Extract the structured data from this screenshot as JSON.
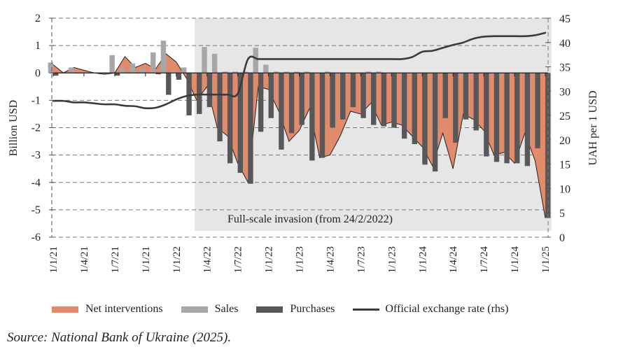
{
  "chart_data": {
    "type": "bar",
    "title": "",
    "ylabel": "Billion USD",
    "ylabel_right": "UAH per 1 USD",
    "ylim": [
      -6,
      2
    ],
    "ylim_right": [
      0,
      45
    ],
    "yticks": [
      "2",
      "1",
      "0",
      "-1",
      "-2",
      "-3",
      "-4",
      "-5",
      "-6"
    ],
    "yticks_values": [
      2,
      1,
      0,
      -1,
      -2,
      -3,
      -4,
      -5,
      -6
    ],
    "yticks_right": [
      "45",
      "40",
      "35",
      "30",
      "25",
      "20",
      "15",
      "10",
      "5",
      "0"
    ],
    "yticks_right_values": [
      45,
      40,
      35,
      30,
      25,
      20,
      15,
      10,
      5,
      0
    ],
    "xtick_labels": [
      "1/1/21",
      "1/4/21",
      "1/7/21",
      "1/1/21",
      "1/1/22",
      "1/4/22",
      "1/7/22",
      "1/1/22",
      "1/1/23",
      "1/4/23",
      "1/7/23",
      "1/1/23",
      "1/1/24",
      "1/4/24",
      "1/7/24",
      "1/1/24",
      "1/1/25"
    ],
    "xtick_month_index": [
      0,
      3,
      6,
      9,
      12,
      15,
      18,
      21,
      24,
      27,
      30,
      33,
      36,
      39,
      42,
      45,
      48
    ],
    "grid": "horizontal dashed",
    "shaded_region": {
      "label": "Full-scale invasion (from 24/2/2022)",
      "start_month_index": 13.8,
      "end_month_index": 48.6
    },
    "months": [
      "2021-01",
      "2021-02",
      "2021-03",
      "2021-04",
      "2021-05",
      "2021-06",
      "2021-07",
      "2021-08",
      "2021-09",
      "2021-10",
      "2021-11",
      "2021-12",
      "2022-01",
      "2022-02",
      "2022-03",
      "2022-04",
      "2022-05",
      "2022-06",
      "2022-07",
      "2022-08",
      "2022-09",
      "2022-10",
      "2022-11",
      "2022-12",
      "2023-01",
      "2023-02",
      "2023-03",
      "2023-04",
      "2023-05",
      "2023-06",
      "2023-07",
      "2023-08",
      "2023-09",
      "2023-10",
      "2023-11",
      "2023-12",
      "2024-01",
      "2024-02",
      "2024-03",
      "2024-04",
      "2024-05",
      "2024-06",
      "2024-07",
      "2024-08",
      "2024-09",
      "2024-10",
      "2024-11",
      "2024-12",
      "2025-01"
    ],
    "series": [
      {
        "name": "Net interventions",
        "type": "area",
        "color": "#e08c6c",
        "values": [
          0.3,
          0.0,
          0.2,
          0.1,
          0.0,
          -0.05,
          0.0,
          0.6,
          0.2,
          0.35,
          0.15,
          0.7,
          0.4,
          -0.2,
          -1.0,
          -0.5,
          -2.0,
          -2.3,
          -3.3,
          -4.0,
          -0.5,
          -0.6,
          -1.4,
          -2.5,
          -2.1,
          -1.3,
          -3.1,
          -3.0,
          -2.3,
          -1.4,
          -1.5,
          -1.1,
          -1.9,
          -1.8,
          -1.9,
          -2.3,
          -2.7,
          -3.4,
          -2.2,
          -3.5,
          -1.5,
          -1.7,
          -2.1,
          -3.0,
          -2.9,
          -3.3,
          -2.2,
          -3.2,
          -5.3
        ]
      },
      {
        "name": "Sales",
        "type": "bar",
        "color": "#a7a7aa",
        "values": [
          0.38,
          0.0,
          0.2,
          0.0,
          0.0,
          0.0,
          0.65,
          0.18,
          0.35,
          0.15,
          0.75,
          1.18,
          0.08,
          0.2,
          0.0,
          0.95,
          0.7,
          0.05,
          0.05,
          0.05,
          0.92,
          0.3,
          0.05,
          0.05,
          0.05,
          0.05,
          0.0,
          0.05,
          0.0,
          0.0,
          0.0,
          0.05,
          0.05,
          0.0,
          0.0,
          0.0,
          0.0,
          0.0,
          0.0,
          0.0,
          0.0,
          0.0,
          0.0,
          0.0,
          0.0,
          0.0,
          0.0,
          0.0,
          0.0
        ]
      },
      {
        "name": "Purchases",
        "type": "bar",
        "color": "#58585a",
        "values": [
          -0.1,
          0.0,
          0.0,
          0.0,
          0.0,
          -0.05,
          -0.1,
          0.0,
          0.0,
          0.0,
          -0.05,
          -0.8,
          -0.25,
          -1.55,
          -1.5,
          -1.25,
          -2.5,
          -3.3,
          -3.65,
          -4.05,
          -2.15,
          -1.65,
          -2.8,
          -2.2,
          -1.9,
          -3.2,
          -3.1,
          -2.0,
          -1.7,
          -1.25,
          -1.65,
          -1.9,
          -1.95,
          -2.0,
          -2.4,
          -2.6,
          -3.35,
          -3.6,
          -1.65,
          -2.55,
          -1.7,
          -2.1,
          -3.05,
          -3.25,
          -3.3,
          -3.3,
          -3.4,
          -2.75,
          -5.3
        ]
      },
      {
        "name": "Official exchange rate (rhs)",
        "type": "line",
        "axis": "right",
        "color": "#3b3b3b",
        "values": [
          28.0,
          28.0,
          27.7,
          27.7,
          27.5,
          27.3,
          27.3,
          27.0,
          26.9,
          26.5,
          26.6,
          27.3,
          28.3,
          29.0,
          29.3,
          29.3,
          29.3,
          29.3,
          29.5,
          36.6,
          36.6,
          36.6,
          36.6,
          36.6,
          36.6,
          36.6,
          36.6,
          36.6,
          36.6,
          36.6,
          36.6,
          36.6,
          36.6,
          36.6,
          36.6,
          37.0,
          38.1,
          38.3,
          38.9,
          39.5,
          40.0,
          40.8,
          41.2,
          41.3,
          41.3,
          41.3,
          41.3,
          41.5,
          42.0
        ]
      }
    ],
    "legend": [
      "Net interventions",
      "Sales",
      "Purchases",
      "Official exchange rate (rhs)"
    ],
    "legend_position": "bottom"
  },
  "annotation": "Full-scale invasion (from 24/2/2022)",
  "legend_labels": {
    "net": "Net interventions",
    "sales": "Sales",
    "purchases": "Purchases",
    "rate": "Official exchange rate (rhs)"
  },
  "source_note": "Source: National Bank of Ukraine (2025)."
}
